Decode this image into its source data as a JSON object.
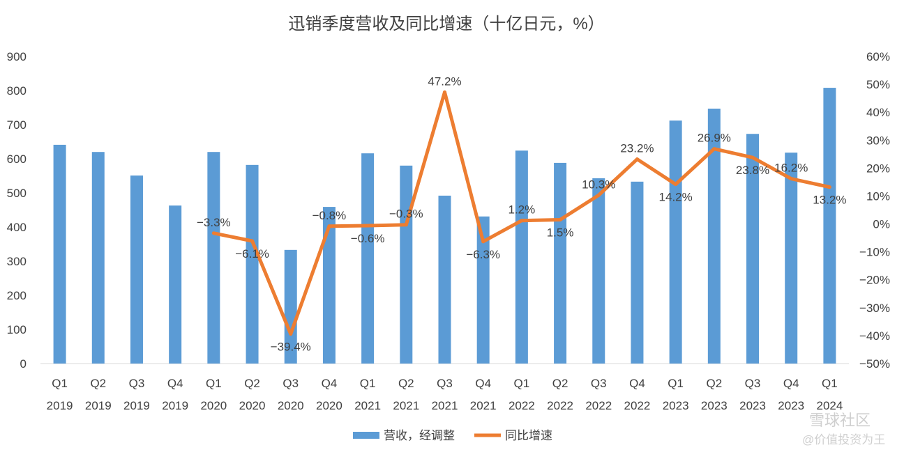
{
  "chart_data": {
    "type": "bar+line",
    "title": "迅销季度营收及同比增速（十亿日元，%）",
    "categories": [
      [
        "Q1",
        "2019"
      ],
      [
        "Q2",
        "2019"
      ],
      [
        "Q3",
        "2019"
      ],
      [
        "Q4",
        "2019"
      ],
      [
        "Q1",
        "2020"
      ],
      [
        "Q2",
        "2020"
      ],
      [
        "Q3",
        "2020"
      ],
      [
        "Q4",
        "2020"
      ],
      [
        "Q1",
        "2021"
      ],
      [
        "Q2",
        "2021"
      ],
      [
        "Q3",
        "2021"
      ],
      [
        "Q4",
        "2021"
      ],
      [
        "Q1",
        "2022"
      ],
      [
        "Q2",
        "2022"
      ],
      [
        "Q3",
        "2022"
      ],
      [
        "Q4",
        "2022"
      ],
      [
        "Q1",
        "2023"
      ],
      [
        "Q2",
        "2023"
      ],
      [
        "Q3",
        "2023"
      ],
      [
        "Q4",
        "2023"
      ],
      [
        "Q1",
        "2024"
      ]
    ],
    "series": [
      {
        "name": "营收，经调整",
        "type": "bar",
        "axis": "left",
        "color": "#5B9BD5",
        "values": [
          641,
          620,
          551,
          463,
          620,
          582,
          333,
          459,
          616,
          580,
          492,
          431,
          624,
          588,
          543,
          533,
          712,
          747,
          673,
          618,
          808
        ]
      },
      {
        "name": "同比增速",
        "type": "line",
        "axis": "right",
        "color": "#ED7D31",
        "values": [
          null,
          null,
          null,
          null,
          -3.3,
          -6.1,
          -39.4,
          -0.8,
          -0.6,
          -0.3,
          47.2,
          -6.3,
          1.2,
          1.5,
          10.3,
          23.2,
          14.2,
          26.9,
          23.8,
          16.2,
          13.2
        ],
        "labels": [
          "",
          "",
          "",
          "",
          "−3.3%",
          "−6.1%",
          "−39.4%",
          "−0.8%",
          "−0.6%",
          "−0.3%",
          "47.2%",
          "−6.3%",
          "1.2%",
          "1.5%",
          "10.3%",
          "23.2%",
          "14.2%",
          "26.9%",
          "23.8%",
          "16.2%",
          "13.2%"
        ]
      }
    ],
    "y_left": {
      "min": 0,
      "max": 900,
      "ticks": [
        "0",
        "100",
        "200",
        "300",
        "400",
        "500",
        "600",
        "700",
        "800",
        "900"
      ]
    },
    "y_right": {
      "min": -50,
      "max": 60,
      "ticks": [
        "−50%",
        "−40%",
        "−30%",
        "−20%",
        "−10%",
        "0%",
        "10%",
        "20%",
        "30%",
        "40%",
        "50%",
        "60%"
      ]
    },
    "grid": false,
    "legend": "bottom"
  },
  "watermark": {
    "line1": "雪球社区",
    "line2": "@价值投资为王"
  }
}
